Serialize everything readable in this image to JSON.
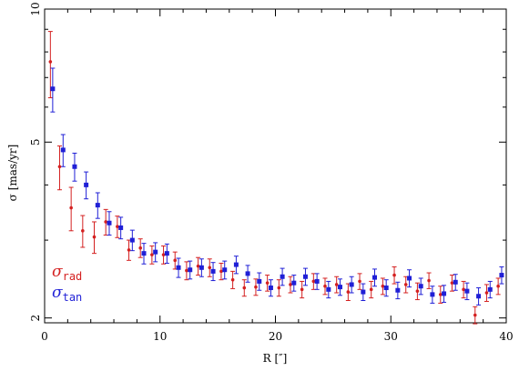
{
  "chart_data": {
    "type": "scatter",
    "xlabel": "R [″]",
    "ylabel": "σ [mas/yr]",
    "xlim": [
      0,
      40
    ],
    "ylim": [
      1.95,
      10
    ],
    "yscale": "log",
    "xticks": [
      "0",
      "10",
      "20",
      "30",
      "40"
    ],
    "yticks": [
      "2",
      "5",
      "10"
    ],
    "grid": false,
    "legend_position": "bottom-left",
    "legend": {
      "rad": {
        "symbol": "σ",
        "sub": "rad",
        "color": "#d42020"
      },
      "tan": {
        "symbol": "σ",
        "sub": "tan",
        "color": "#1f1fd6"
      }
    },
    "series": [
      {
        "key": "rad",
        "color": "#d42020",
        "marker": "circle",
        "points": [
          {
            "x": 0.5,
            "y": 7.6,
            "err": 1.3
          },
          {
            "x": 1.3,
            "y": 4.4,
            "err": 0.5
          },
          {
            "x": 2.3,
            "y": 3.55,
            "err": 0.4
          },
          {
            "x": 3.3,
            "y": 3.15,
            "err": 0.26
          },
          {
            "x": 4.3,
            "y": 3.05,
            "err": 0.25
          },
          {
            "x": 5.3,
            "y": 3.3,
            "err": 0.22
          },
          {
            "x": 6.3,
            "y": 3.22,
            "err": 0.18
          },
          {
            "x": 7.3,
            "y": 2.85,
            "err": 0.15
          },
          {
            "x": 8.3,
            "y": 2.88,
            "err": 0.14
          },
          {
            "x": 9.3,
            "y": 2.78,
            "err": 0.13
          },
          {
            "x": 10.3,
            "y": 2.78,
            "err": 0.13
          },
          {
            "x": 11.3,
            "y": 2.7,
            "err": 0.12
          },
          {
            "x": 12.3,
            "y": 2.56,
            "err": 0.12
          },
          {
            "x": 13.3,
            "y": 2.62,
            "err": 0.12
          },
          {
            "x": 14.3,
            "y": 2.6,
            "err": 0.12
          },
          {
            "x": 15.3,
            "y": 2.55,
            "err": 0.11
          },
          {
            "x": 16.3,
            "y": 2.44,
            "err": 0.11
          },
          {
            "x": 17.3,
            "y": 2.34,
            "err": 0.1
          },
          {
            "x": 18.3,
            "y": 2.35,
            "err": 0.1
          },
          {
            "x": 19.3,
            "y": 2.4,
            "err": 0.1
          },
          {
            "x": 20.3,
            "y": 2.34,
            "err": 0.1
          },
          {
            "x": 21.3,
            "y": 2.38,
            "err": 0.1
          },
          {
            "x": 22.3,
            "y": 2.32,
            "err": 0.1
          },
          {
            "x": 23.3,
            "y": 2.42,
            "err": 0.1
          },
          {
            "x": 24.3,
            "y": 2.36,
            "err": 0.1
          },
          {
            "x": 25.3,
            "y": 2.38,
            "err": 0.1
          },
          {
            "x": 26.3,
            "y": 2.29,
            "err": 0.1
          },
          {
            "x": 27.3,
            "y": 2.42,
            "err": 0.1
          },
          {
            "x": 28.3,
            "y": 2.32,
            "err": 0.1
          },
          {
            "x": 29.3,
            "y": 2.36,
            "err": 0.1
          },
          {
            "x": 30.3,
            "y": 2.5,
            "err": 0.11
          },
          {
            "x": 31.3,
            "y": 2.38,
            "err": 0.1
          },
          {
            "x": 32.3,
            "y": 2.3,
            "err": 0.1
          },
          {
            "x": 33.3,
            "y": 2.43,
            "err": 0.1
          },
          {
            "x": 34.3,
            "y": 2.26,
            "err": 0.1
          },
          {
            "x": 35.3,
            "y": 2.4,
            "err": 0.1
          },
          {
            "x": 36.3,
            "y": 2.32,
            "err": 0.1
          },
          {
            "x": 37.3,
            "y": 2.03,
            "err": 0.09
          },
          {
            "x": 38.3,
            "y": 2.28,
            "err": 0.1
          },
          {
            "x": 39.3,
            "y": 2.36,
            "err": 0.1
          }
        ]
      },
      {
        "key": "tan",
        "color": "#1f1fd6",
        "marker": "square",
        "points": [
          {
            "x": 0.7,
            "y": 6.6,
            "err": 0.75
          },
          {
            "x": 1.6,
            "y": 4.8,
            "err": 0.4
          },
          {
            "x": 2.6,
            "y": 4.4,
            "err": 0.32
          },
          {
            "x": 3.6,
            "y": 4.0,
            "err": 0.28
          },
          {
            "x": 4.6,
            "y": 3.6,
            "err": 0.24
          },
          {
            "x": 5.6,
            "y": 3.28,
            "err": 0.2
          },
          {
            "x": 6.6,
            "y": 3.2,
            "err": 0.18
          },
          {
            "x": 7.6,
            "y": 3.0,
            "err": 0.16
          },
          {
            "x": 8.6,
            "y": 2.8,
            "err": 0.15
          },
          {
            "x": 9.6,
            "y": 2.82,
            "err": 0.14
          },
          {
            "x": 10.6,
            "y": 2.8,
            "err": 0.14
          },
          {
            "x": 11.6,
            "y": 2.6,
            "err": 0.13
          },
          {
            "x": 12.6,
            "y": 2.57,
            "err": 0.12
          },
          {
            "x": 13.6,
            "y": 2.6,
            "err": 0.12
          },
          {
            "x": 14.6,
            "y": 2.55,
            "err": 0.12
          },
          {
            "x": 15.6,
            "y": 2.57,
            "err": 0.12
          },
          {
            "x": 16.6,
            "y": 2.64,
            "err": 0.12
          },
          {
            "x": 17.6,
            "y": 2.52,
            "err": 0.11
          },
          {
            "x": 18.6,
            "y": 2.42,
            "err": 0.11
          },
          {
            "x": 19.6,
            "y": 2.34,
            "err": 0.1
          },
          {
            "x": 20.6,
            "y": 2.48,
            "err": 0.11
          },
          {
            "x": 21.6,
            "y": 2.4,
            "err": 0.1
          },
          {
            "x": 22.6,
            "y": 2.48,
            "err": 0.11
          },
          {
            "x": 23.6,
            "y": 2.42,
            "err": 0.1
          },
          {
            "x": 24.6,
            "y": 2.32,
            "err": 0.1
          },
          {
            "x": 25.6,
            "y": 2.35,
            "err": 0.1
          },
          {
            "x": 26.6,
            "y": 2.38,
            "err": 0.1
          },
          {
            "x": 27.6,
            "y": 2.29,
            "err": 0.1
          },
          {
            "x": 28.6,
            "y": 2.47,
            "err": 0.11
          },
          {
            "x": 29.6,
            "y": 2.34,
            "err": 0.1
          },
          {
            "x": 30.6,
            "y": 2.31,
            "err": 0.1
          },
          {
            "x": 31.6,
            "y": 2.46,
            "err": 0.11
          },
          {
            "x": 32.6,
            "y": 2.36,
            "err": 0.1
          },
          {
            "x": 33.6,
            "y": 2.26,
            "err": 0.1
          },
          {
            "x": 34.6,
            "y": 2.27,
            "err": 0.1
          },
          {
            "x": 35.6,
            "y": 2.41,
            "err": 0.1
          },
          {
            "x": 36.6,
            "y": 2.3,
            "err": 0.1
          },
          {
            "x": 37.6,
            "y": 2.24,
            "err": 0.1
          },
          {
            "x": 38.6,
            "y": 2.32,
            "err": 0.1
          },
          {
            "x": 39.6,
            "y": 2.5,
            "err": 0.11
          }
        ]
      }
    ]
  }
}
